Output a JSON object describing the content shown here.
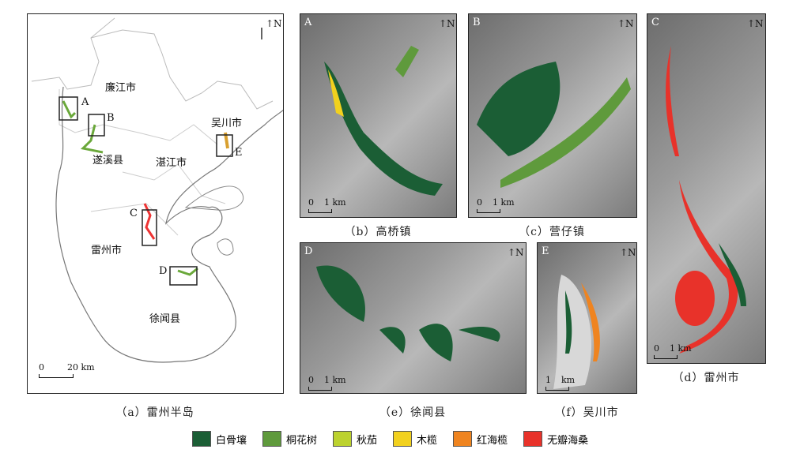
{
  "north_label": "N",
  "panels": {
    "a": {
      "caption": "（a）雷州半岛",
      "scale": {
        "zero": "0",
        "end": "20 km"
      },
      "regions": [
        "廉江市",
        "遂溪县",
        "湛江市",
        "吴川市",
        "雷州市",
        "徐闻县"
      ],
      "boxes": [
        "A",
        "B",
        "C",
        "D",
        "E"
      ]
    },
    "b": {
      "letter": "A",
      "caption": "（b）高桥镇",
      "scale": {
        "zero": "0",
        "end": "1 km"
      }
    },
    "c": {
      "letter": "B",
      "caption": "（c）营仔镇",
      "scale": {
        "zero": "0",
        "end": "1 km"
      }
    },
    "d": {
      "letter": "C",
      "caption": "（d）雷州市",
      "scale": {
        "zero": "0",
        "end": "1 km"
      }
    },
    "e": {
      "letter": "D",
      "caption": "（e）徐闻县",
      "scale": {
        "zero": "0",
        "end": "1 km"
      }
    },
    "f": {
      "letter": "E",
      "caption": "（f）吴川市",
      "scale": {
        "zero": "0",
        "end": "km"
      }
    }
  },
  "legend": [
    {
      "label": "白骨壤",
      "color": "#1b5e35"
    },
    {
      "label": "桐花树",
      "color": "#5f9a3c"
    },
    {
      "label": "秋茄",
      "color": "#bcd22e"
    },
    {
      "label": "木榄",
      "color": "#f2d11e"
    },
    {
      "label": "红海榄",
      "color": "#ef8420"
    },
    {
      "label": "无瓣海桑",
      "color": "#e8322a"
    }
  ]
}
